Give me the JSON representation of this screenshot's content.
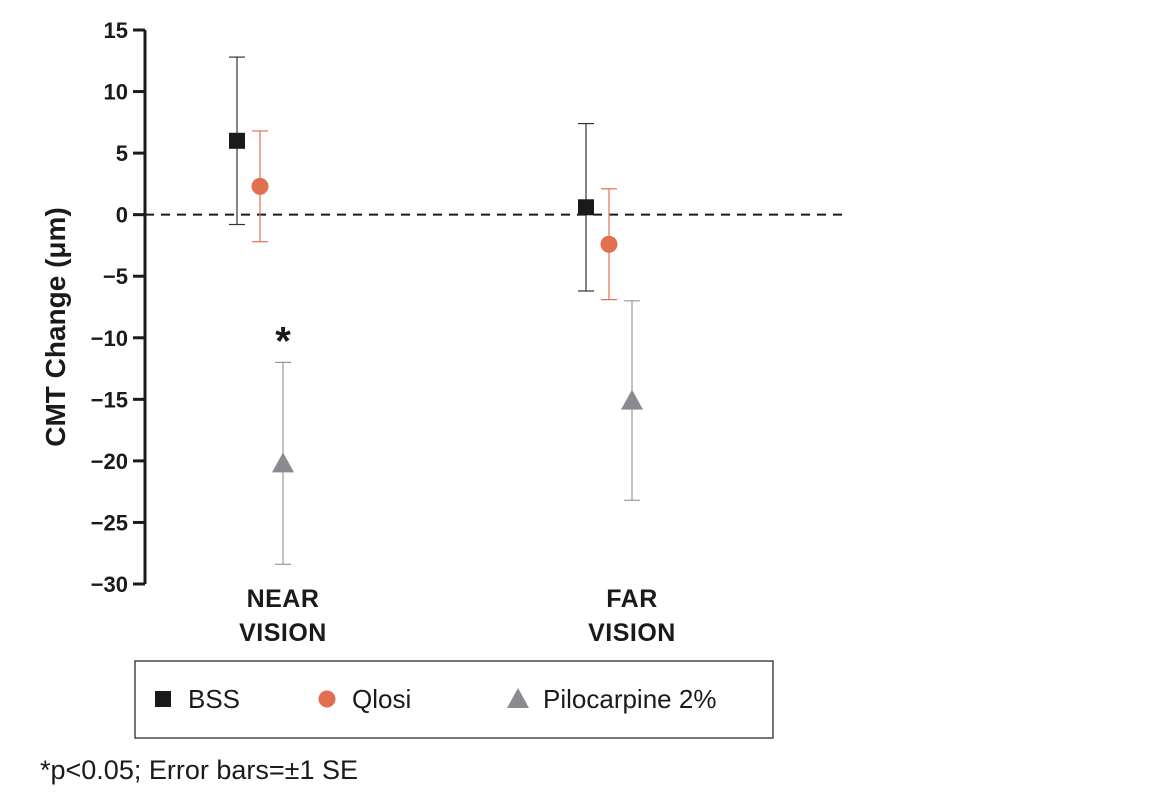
{
  "chart_data": {
    "type": "scatter",
    "ylabel": "CMT Change (μm)",
    "xlabel": "",
    "ylim": [
      -30,
      15
    ],
    "yticks": [
      15,
      10,
      5,
      0,
      -5,
      -10,
      -15,
      -20,
      -25,
      -30
    ],
    "categories": [
      {
        "lines": [
          "NEAR",
          "VISION"
        ]
      },
      {
        "lines": [
          "FAR",
          "VISION"
        ]
      }
    ],
    "reference_line": 0,
    "series": [
      {
        "name": "BSS",
        "marker": "square",
        "color": "#1a1a1a",
        "bar_color": "#333333",
        "values": [
          6.0,
          0.6
        ],
        "err": [
          6.8,
          6.8
        ]
      },
      {
        "name": "Qlosi",
        "marker": "circle",
        "color": "#e07050",
        "bar_color": "#e07050",
        "values": [
          2.3,
          -2.4
        ],
        "err": [
          4.5,
          4.5
        ]
      },
      {
        "name": "Pilocarpine 2%",
        "marker": "triangle",
        "color": "#8a8a90",
        "bar_color": "#9a9a9a",
        "values": [
          -20.2,
          -15.1
        ],
        "err": [
          8.2,
          8.1
        ]
      }
    ],
    "annotations": [
      {
        "text": "*",
        "series": 2,
        "category": 0
      }
    ],
    "legend": {
      "position": "bottom"
    },
    "footnote": "*p<0.05; Error bars=±1 SE"
  }
}
